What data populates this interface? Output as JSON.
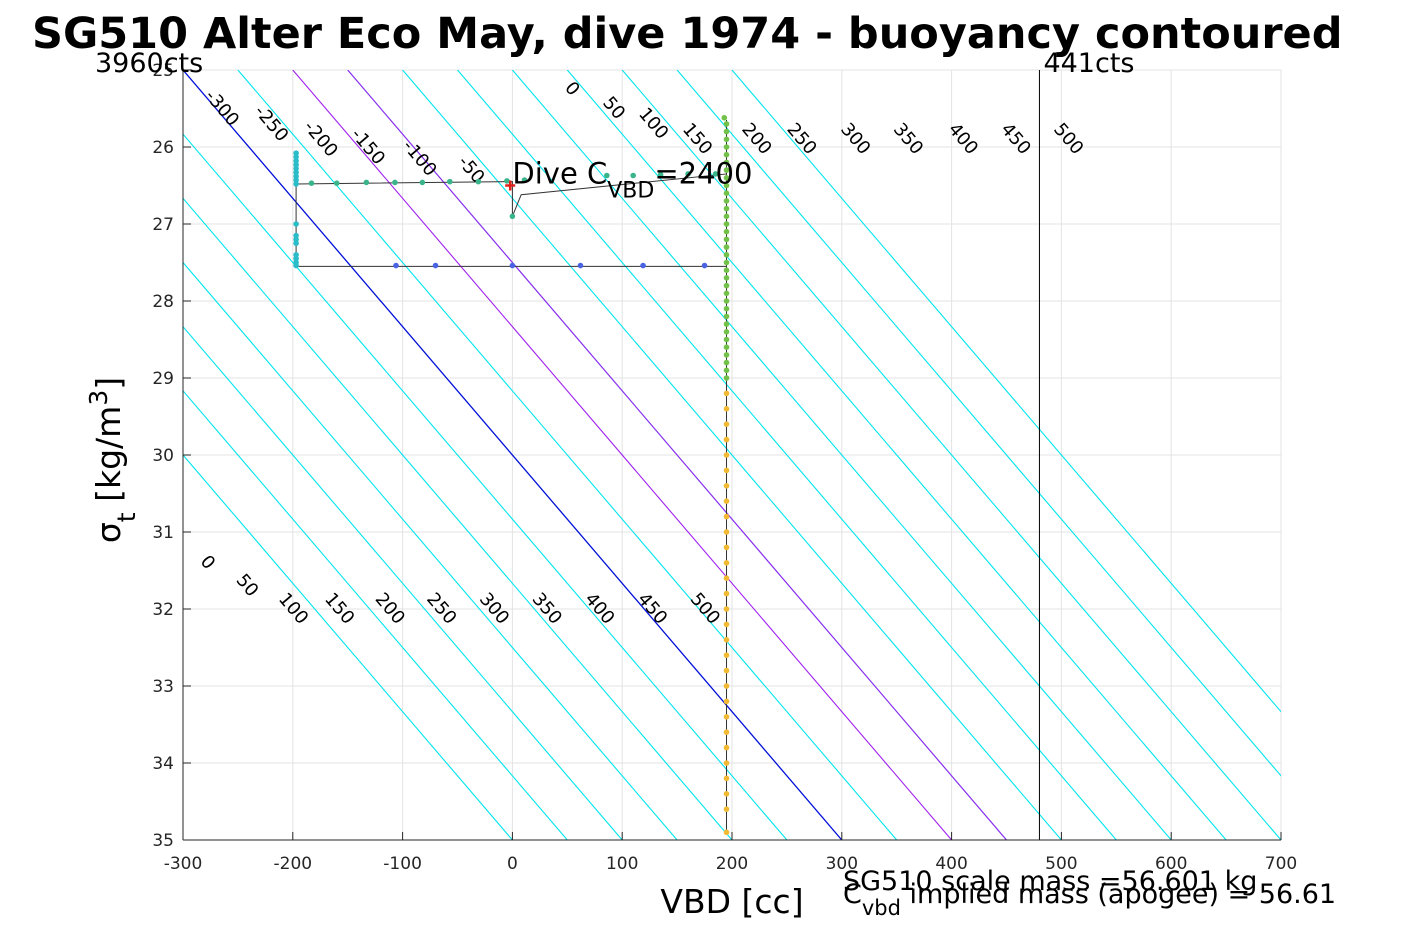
{
  "chart_data": {
    "type": "scatter",
    "title": "SG510 Alter Eco May, dive 1974 - buoyancy contoured",
    "xlabel": "VBD [cc]",
    "ylabel": {
      "sym": "σ",
      "sub": "t",
      "unit": "[kg/m",
      "sup": "3",
      "close": "]"
    },
    "xlim": [
      -300,
      700
    ],
    "ylim": [
      25,
      35
    ],
    "y_reversed": true,
    "grid": true,
    "xticks": [
      "-300",
      "-200",
      "-100",
      "0",
      "100",
      "200",
      "300",
      "400",
      "500",
      "600",
      "700"
    ],
    "yticks": [
      "25",
      "26",
      "27",
      "28",
      "29",
      "30",
      "31",
      "32",
      "33",
      "34",
      "35"
    ],
    "contour_slope_cc_per_kgm3": 60,
    "contours_cyan": [
      -300,
      -250,
      -200,
      -150,
      -100,
      -50,
      50,
      150,
      200,
      250,
      300,
      350,
      400,
      450,
      500
    ],
    "contours_purple": [
      100,
      150
    ],
    "contours_blue": [
      0
    ],
    "contour_labels_top": [
      {
        "text": "-300",
        "x": -265,
        "y": 25.5
      },
      {
        "text": "-250",
        "x": -220,
        "y": 25.7
      },
      {
        "text": "-200",
        "x": -175,
        "y": 25.9
      },
      {
        "text": "-150",
        "x": -132,
        "y": 26.0
      },
      {
        "text": "-100",
        "x": -85,
        "y": 26.15
      },
      {
        "text": "-50",
        "x": -38,
        "y": 26.3
      },
      {
        "text": "0",
        "x": 54,
        "y": 25.25
      },
      {
        "text": "50",
        "x": 92,
        "y": 25.5
      },
      {
        "text": "100",
        "x": 128,
        "y": 25.7
      },
      {
        "text": "150",
        "x": 168,
        "y": 25.9
      },
      {
        "text": "200",
        "x": 222,
        "y": 25.9
      },
      {
        "text": "250",
        "x": 263,
        "y": 25.9
      },
      {
        "text": "300",
        "x": 312,
        "y": 25.9
      },
      {
        "text": "350",
        "x": 360,
        "y": 25.9
      },
      {
        "text": "400",
        "x": 410,
        "y": 25.9
      },
      {
        "text": "450",
        "x": 458,
        "y": 25.9
      },
      {
        "text": "500",
        "x": 506,
        "y": 25.9
      }
    ],
    "contour_labels_bottom": [
      {
        "text": "0",
        "x": -278,
        "y": 31.4
      },
      {
        "text": "50",
        "x": -242,
        "y": 31.7
      },
      {
        "text": "100",
        "x": -200,
        "y": 32.0
      },
      {
        "text": "150",
        "x": -158,
        "y": 32.0
      },
      {
        "text": "200",
        "x": -112,
        "y": 32.0
      },
      {
        "text": "250",
        "x": -65,
        "y": 32.0
      },
      {
        "text": "300",
        "x": -17,
        "y": 32.0
      },
      {
        "text": "350",
        "x": 31,
        "y": 32.0
      },
      {
        "text": "400",
        "x": 79,
        "y": 32.0
      },
      {
        "text": "450",
        "x": 127,
        "y": 32.0
      },
      {
        "text": "500",
        "x": 175,
        "y": 32.0
      }
    ],
    "vlines": [
      {
        "x": 480,
        "label": "441cts"
      }
    ],
    "left_label": "3960cts",
    "dive_path": [
      [
        -197,
        27.52
      ],
      [
        -197,
        26.1
      ],
      [
        -197,
        26.48
      ],
      [
        0,
        26.45
      ],
      [
        0,
        26.9
      ],
      [
        8,
        26.62
      ],
      [
        195,
        26.35
      ],
      [
        195,
        25.65
      ],
      [
        195,
        34.9
      ],
      [
        195,
        27.55
      ],
      [
        -197,
        27.55
      ]
    ],
    "series": [
      {
        "color": "#2bbcc9",
        "points": [
          [
            -197,
            26.08
          ],
          [
            -197,
            26.13
          ],
          [
            -197,
            26.18
          ],
          [
            -197,
            26.23
          ],
          [
            -197,
            26.28
          ],
          [
            -197,
            26.33
          ],
          [
            -197,
            26.38
          ],
          [
            -197,
            26.43
          ],
          [
            -197,
            26.48
          ],
          [
            -197,
            27.0
          ],
          [
            -197,
            27.15
          ],
          [
            -197,
            27.2
          ],
          [
            -197,
            27.25
          ],
          [
            -197,
            27.4
          ],
          [
            -197,
            27.45
          ],
          [
            -197,
            27.5
          ],
          [
            -197,
            27.54
          ]
        ]
      },
      {
        "color": "#3ab58a",
        "points": [
          [
            -183,
            26.47
          ],
          [
            -160,
            26.47
          ],
          [
            -133,
            26.46
          ],
          [
            -107,
            26.46
          ],
          [
            -82,
            26.46
          ],
          [
            -57,
            26.45
          ],
          [
            -31,
            26.45
          ],
          [
            -5,
            26.44
          ],
          [
            0,
            26.9
          ],
          [
            11,
            26.43
          ],
          [
            86,
            26.37
          ],
          [
            110,
            26.37
          ],
          [
            135,
            26.36
          ],
          [
            160,
            26.35
          ],
          [
            185,
            26.35
          ]
        ]
      },
      {
        "color": "#4a63e3",
        "points": [
          [
            -106,
            27.54
          ],
          [
            -70,
            27.54
          ],
          [
            0,
            27.54
          ],
          [
            62,
            27.54
          ],
          [
            119,
            27.54
          ],
          [
            175,
            27.54
          ]
        ]
      },
      {
        "color": "#72c24a",
        "points": [
          [
            193,
            25.62
          ],
          [
            195,
            25.7
          ],
          [
            195,
            25.8
          ],
          [
            195,
            25.9
          ],
          [
            195,
            26.0
          ],
          [
            195,
            26.1
          ],
          [
            195,
            26.2
          ],
          [
            195,
            26.3
          ],
          [
            195,
            26.4
          ],
          [
            195,
            26.5
          ],
          [
            195,
            26.6
          ],
          [
            195,
            26.7
          ],
          [
            195,
            26.8
          ],
          [
            195,
            26.9
          ],
          [
            195,
            27.0
          ],
          [
            195,
            27.1
          ],
          [
            195,
            27.2
          ],
          [
            195,
            27.3
          ],
          [
            195,
            27.4
          ],
          [
            195,
            27.5
          ],
          [
            195,
            27.6
          ],
          [
            195,
            27.7
          ],
          [
            195,
            27.8
          ],
          [
            195,
            27.9
          ],
          [
            195,
            28.0
          ],
          [
            195,
            28.1
          ],
          [
            195,
            28.2
          ],
          [
            195,
            28.3
          ],
          [
            195,
            28.4
          ],
          [
            195,
            28.5
          ],
          [
            195,
            28.6
          ],
          [
            195,
            28.7
          ],
          [
            195,
            28.8
          ],
          [
            195,
            28.9
          ],
          [
            195,
            29.0
          ]
        ]
      },
      {
        "color": "#f2b933",
        "points": [
          [
            195,
            29.2
          ],
          [
            195,
            29.4
          ],
          [
            195,
            29.6
          ],
          [
            195,
            29.8
          ],
          [
            195,
            30.0
          ],
          [
            195,
            30.2
          ],
          [
            195,
            30.4
          ],
          [
            195,
            30.6
          ],
          [
            195,
            30.8
          ],
          [
            195,
            31.0
          ],
          [
            195,
            31.2
          ],
          [
            195,
            31.4
          ],
          [
            195,
            31.6
          ],
          [
            195,
            31.8
          ],
          [
            195,
            32.0
          ],
          [
            195,
            32.2
          ],
          [
            195,
            32.4
          ],
          [
            195,
            32.6
          ],
          [
            195,
            32.8
          ],
          [
            195,
            33.0
          ],
          [
            195,
            33.2
          ],
          [
            195,
            33.4
          ],
          [
            195,
            33.6
          ],
          [
            195,
            33.8
          ],
          [
            195,
            34.0
          ],
          [
            195,
            34.2
          ],
          [
            195,
            34.4
          ],
          [
            195,
            34.6
          ],
          [
            195,
            34.9
          ]
        ]
      }
    ],
    "marker": {
      "x": -2,
      "y": 26.5,
      "color": "#e0201b",
      "symbol": "+"
    },
    "annotation": {
      "base": "Dive C",
      "sub": "VBD",
      "rest": "=2400",
      "x": 0,
      "y": 26.45
    },
    "footer_line1": "SG510 scale mass =56.601 kg",
    "footer_line2_base": "C",
    "footer_line2_sub": "vbd",
    "footer_line2_rest": " implied mass (apogee) = 56.61"
  }
}
